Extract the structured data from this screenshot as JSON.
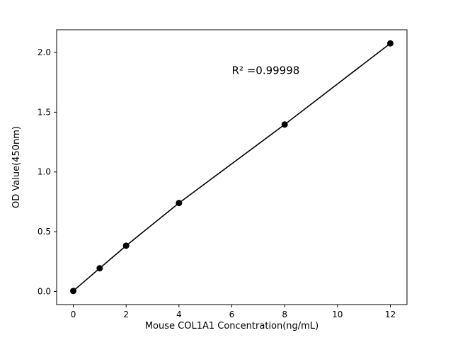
{
  "chart_data": {
    "type": "scatter",
    "title": "",
    "xlabel": "Mouse COL1A1 Concentration(ng/mL)",
    "ylabel": "OD Value(450nm)",
    "annotation": "R² =0.99998",
    "annotation_xy": [
      6.0,
      1.82
    ],
    "x": [
      0,
      1,
      2,
      4,
      8,
      12
    ],
    "y": [
      0.004,
      0.194,
      0.383,
      0.74,
      1.397,
      2.076
    ],
    "xlim": [
      -0.63,
      12.63
    ],
    "ylim": [
      -0.11,
      2.19
    ],
    "xticks": [
      0,
      2,
      4,
      6,
      8,
      10,
      12
    ],
    "yticks": [
      "0.0",
      "0.5",
      "1.0",
      "1.5",
      "2.0"
    ],
    "line_color": "#000000",
    "marker_color": "#000000",
    "background_color": "#ffffff",
    "grid": false,
    "legend": null
  }
}
